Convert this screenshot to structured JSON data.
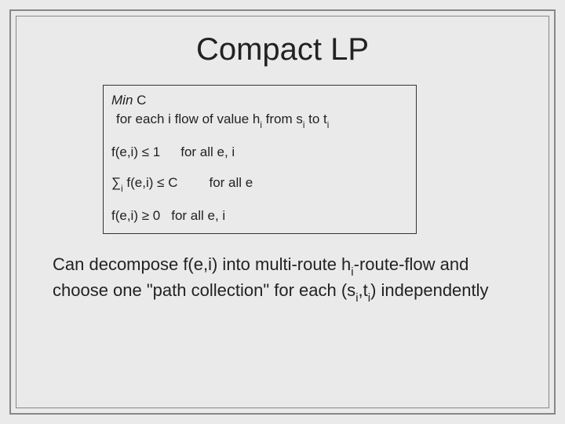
{
  "slide": {
    "title": "Compact LP",
    "lp": {
      "min_prefix": "Min",
      "min_var": " C",
      "flow_line_a": "for each i flow of value h",
      "flow_line_b": " from s",
      "flow_line_c": " to t",
      "sub_i": "i",
      "c1_lhs": "f(e,i)  ≤  1",
      "c1_rhs": "for all e, i",
      "c2_sum": "∑",
      "c2_mid": " f(e,i)  ≤  C",
      "c2_rhs": "for all e",
      "c3_lhs": "f(e,i)",
      "c3_mid": " ≥ 0",
      "c3_rhs": "for all e, i"
    },
    "body": {
      "p1a": "Can decompose f(e,i) into multi-route h",
      "p1b": "-route-flow and choose one \"path collection\" for each (s",
      "p1c": ",t",
      "p1d": ") independently"
    },
    "colors": {
      "background": "#eaeaea",
      "border": "#888888",
      "box_border": "#333333",
      "text": "#222222"
    },
    "fonts": {
      "title_size": 40,
      "box_size": 17,
      "body_size": 22
    }
  }
}
